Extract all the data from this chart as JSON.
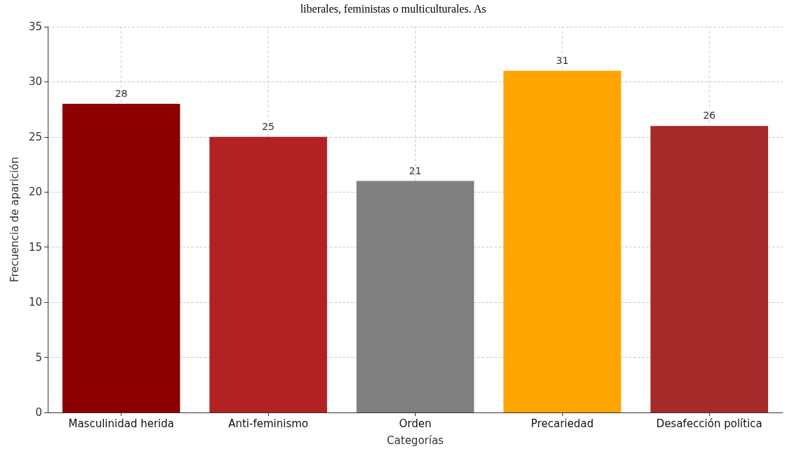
{
  "chart_data": {
    "type": "bar",
    "annotations": [
      "liberales, feministas o multiculturales. As"
    ],
    "xlabel": "Categorías",
    "ylabel": "Frecuencia de aparición",
    "categories": [
      "Masculinidad herida",
      "Anti-feminismo",
      "Orden",
      "Precariedad",
      "Desafección política"
    ],
    "values": [
      28,
      25,
      21,
      31,
      26
    ],
    "colors": [
      "#8b0000",
      "#b22222",
      "#808080",
      "#ffa500",
      "#a52a2a"
    ],
    "ylim": [
      0,
      35
    ],
    "yticks": [
      0,
      5,
      10,
      15,
      20,
      25,
      30,
      35
    ],
    "grid": true,
    "data_labels": true
  }
}
